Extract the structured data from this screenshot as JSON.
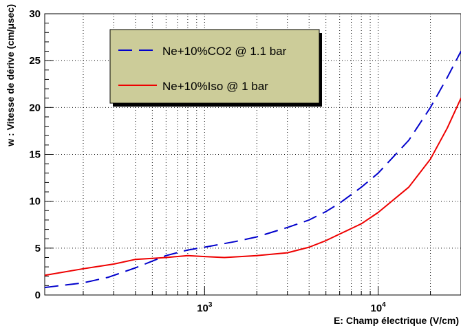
{
  "chart_data": {
    "type": "line",
    "xlabel": "E: Champ électrique (V/cm)",
    "ylabel": "w : Vitesse de dérive (cm/μsec)",
    "xscale": "log",
    "xlim": [
      120,
      30000
    ],
    "ylim": [
      0,
      30
    ],
    "grid": true,
    "legend_position": "top-left",
    "y_ticks": [
      "0",
      "5",
      "10",
      "15",
      "20",
      "25",
      "30"
    ],
    "x_ticks": [
      {
        "base": "10",
        "exp": "3",
        "value": 1000
      },
      {
        "base": "10",
        "exp": "4",
        "value": 10000
      }
    ],
    "series": [
      {
        "name": "Ne+10%CO2 @ 1.1 bar",
        "color": "#0000cc",
        "dash": "long-dash",
        "x": [
          120,
          200,
          280,
          400,
          600,
          800,
          1000,
          1500,
          2000,
          3000,
          4000,
          5000,
          6000,
          8000,
          10000,
          15000,
          20000,
          25000,
          30000
        ],
        "y": [
          0.8,
          1.3,
          1.9,
          2.9,
          4.2,
          4.8,
          5.1,
          5.7,
          6.2,
          7.2,
          8.0,
          8.9,
          9.8,
          11.5,
          13.0,
          16.5,
          20.0,
          23.2,
          26.0
        ]
      },
      {
        "name": "Ne+10%Iso @ 1 bar",
        "color": "#ee0000",
        "dash": "solid",
        "x": [
          120,
          200,
          300,
          400,
          600,
          800,
          1000,
          1300,
          2000,
          3000,
          4000,
          5000,
          6000,
          8000,
          10000,
          15000,
          20000,
          25000,
          30000
        ],
        "y": [
          2.1,
          2.8,
          3.3,
          3.8,
          4.0,
          4.2,
          4.1,
          4.0,
          4.2,
          4.5,
          5.1,
          5.8,
          6.5,
          7.6,
          8.8,
          11.5,
          14.5,
          17.8,
          21.0
        ]
      }
    ]
  }
}
